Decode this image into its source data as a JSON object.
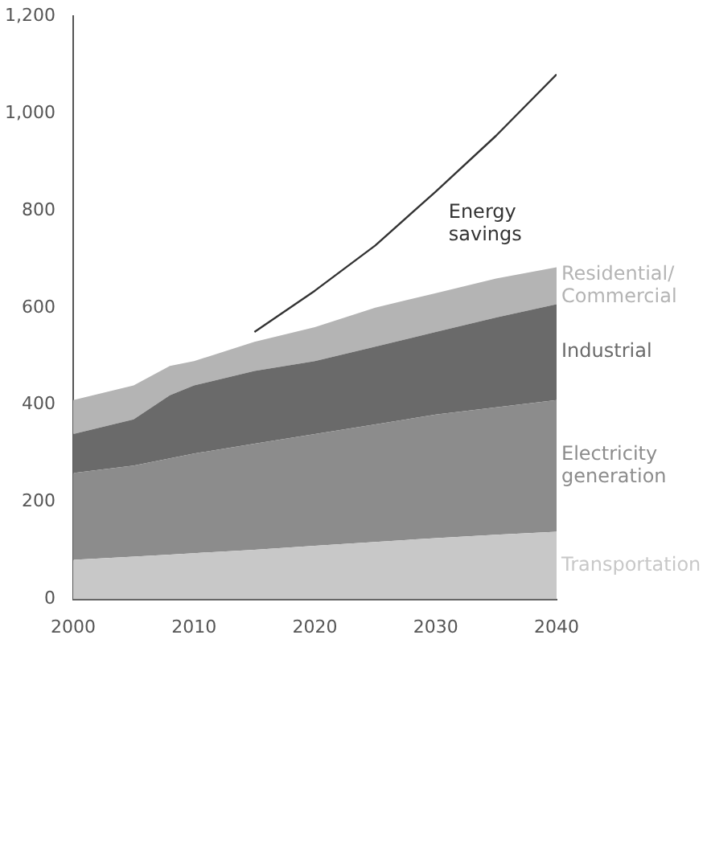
{
  "chart_data": {
    "type": "area",
    "stacked": true,
    "x": [
      2000,
      2005,
      2008,
      2010,
      2015,
      2020,
      2025,
      2030,
      2035,
      2040
    ],
    "series": [
      {
        "name": "Transportation",
        "color": "#c8c8c8",
        "values": [
          81,
          88,
          92,
          95,
          102,
          110,
          118,
          126,
          133,
          139
        ]
      },
      {
        "name": "Electricity generation",
        "color": "#8c8c8c",
        "values": [
          179,
          187,
          198,
          205,
          218,
          230,
          242,
          254,
          262,
          271
        ]
      },
      {
        "name": "Industrial",
        "color": "#6a6a6a",
        "values": [
          80,
          95,
          130,
          140,
          150,
          150,
          160,
          170,
          185,
          197
        ]
      },
      {
        "name": "Residential/Commercial",
        "color": "#b4b4b4",
        "values": [
          70,
          70,
          60,
          50,
          60,
          70,
          80,
          80,
          80,
          76
        ]
      },
      {
        "name": "Energy savings",
        "type": "line",
        "color": "#333333",
        "x": [
          2015,
          2020,
          2025,
          2030,
          2035,
          2040
        ],
        "values": [
          550,
          635,
          728,
          839,
          954,
          1080
        ]
      }
    ],
    "xlim": [
      2000,
      2040
    ],
    "xticks": [
      2000,
      2010,
      2020,
      2030,
      2040
    ],
    "ylim": [
      0,
      1200
    ],
    "yticks": [
      0,
      200,
      400,
      600,
      800,
      {
        "value": 1000,
        "label": "1,000"
      },
      {
        "value": 1200,
        "label": "1,200"
      }
    ],
    "grid": false,
    "legend": false,
    "marker": "none"
  }
}
